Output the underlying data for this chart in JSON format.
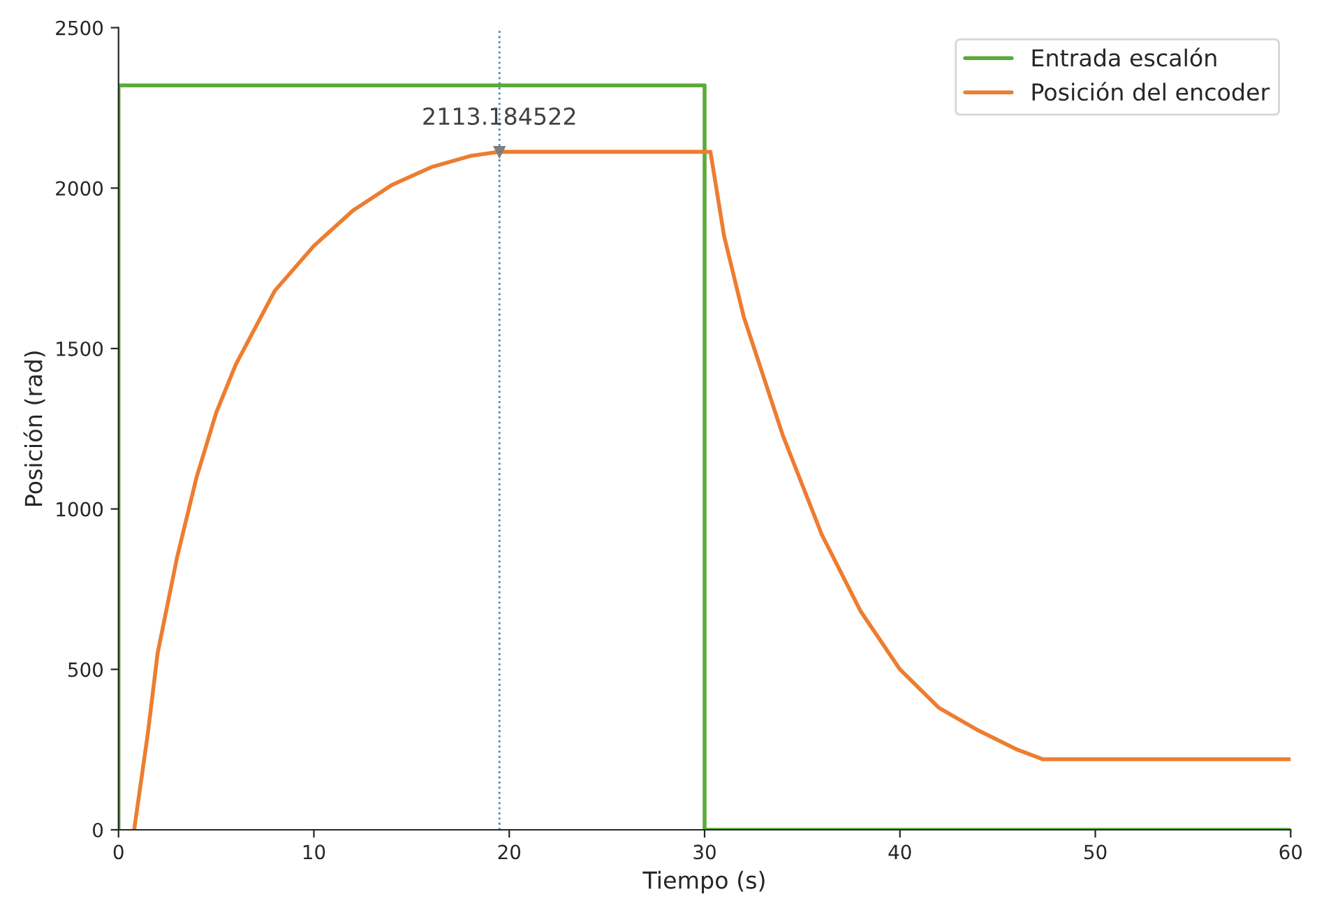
{
  "chart_data": {
    "type": "line",
    "xlabel": "Tiempo (s)",
    "ylabel": "Posición (rad)",
    "xlim": [
      0,
      60
    ],
    "xticks": [
      0,
      10,
      20,
      30,
      40,
      50,
      60
    ],
    "ylim": [
      0,
      2500
    ],
    "yticks": [
      0,
      500,
      1000,
      1500,
      2000,
      2500
    ],
    "series": [
      {
        "name": "Entrada escalón",
        "color": "#5bab3a",
        "x": [
          0,
          0,
          30,
          30,
          60
        ],
        "values": [
          0,
          2320,
          2320,
          0,
          0
        ]
      },
      {
        "name": "Posición del encoder",
        "color": "#ed7d31",
        "x": [
          0.8,
          1.5,
          2,
          3,
          4,
          5,
          6,
          8,
          10,
          12,
          14,
          16,
          18,
          19.5,
          30.3,
          31,
          32,
          34,
          36,
          38,
          40,
          42,
          44,
          46,
          47.3,
          60
        ],
        "values": [
          0,
          300,
          550,
          850,
          1100,
          1300,
          1450,
          1680,
          1820,
          1930,
          2010,
          2065,
          2100,
          2113,
          2113,
          1850,
          1600,
          1230,
          920,
          680,
          500,
          380,
          310,
          250,
          220,
          220
        ]
      }
    ],
    "ref_lines": [
      {
        "axis": "x",
        "value": 19.5,
        "color": "#4f81bd",
        "line_style": "dotted"
      }
    ],
    "annotations": [
      {
        "text": "2113.184522",
        "x": 19.5,
        "y": 2113
      }
    ],
    "legend": "top right",
    "grid": false
  }
}
